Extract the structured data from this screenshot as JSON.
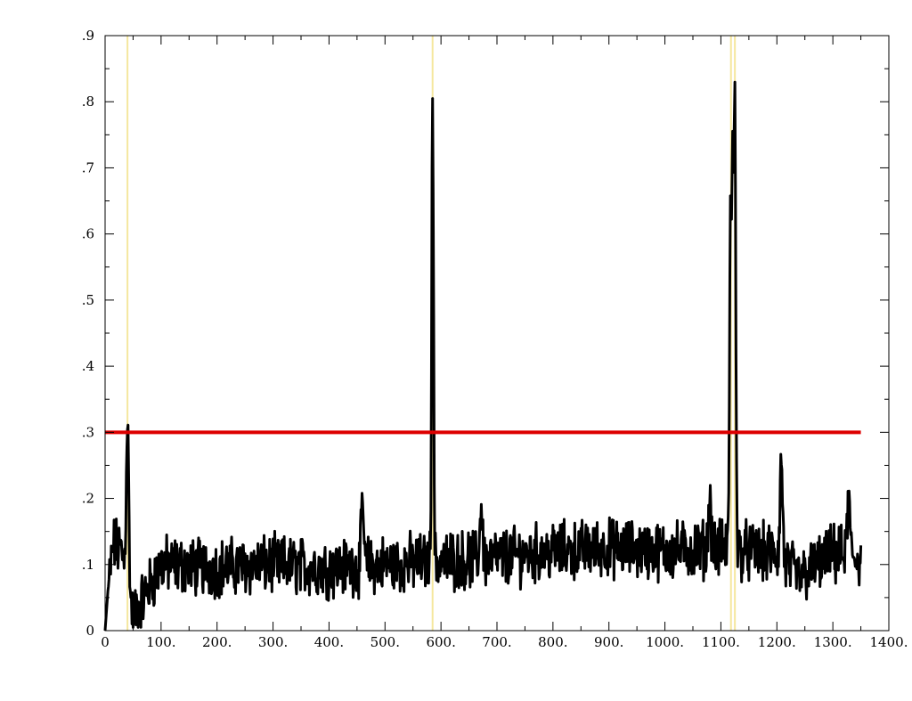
{
  "chart_data": {
    "type": "line",
    "title": "",
    "xlabel": "",
    "ylabel": "",
    "xlim": [
      0,
      1400
    ],
    "ylim": [
      0,
      0.9
    ],
    "x_ticks": [
      0,
      100,
      200,
      300,
      400,
      500,
      600,
      700,
      800,
      900,
      1000,
      1100,
      1200,
      1300,
      1400
    ],
    "x_tick_labels": [
      "0",
      "100.",
      "200.",
      "300.",
      "400.",
      "500.",
      "600.",
      "700.",
      "800.",
      "900.",
      "1000.",
      "1100.",
      "1200.",
      "1300.",
      "1400."
    ],
    "y_ticks": [
      0,
      0.1,
      0.2,
      0.3,
      0.4,
      0.5,
      0.6,
      0.7,
      0.8,
      0.9
    ],
    "y_tick_labels": [
      "0",
      ".1",
      ".2",
      ".3",
      ".4",
      ".5",
      ".6",
      ".7",
      ".8",
      ".9"
    ],
    "grid": false,
    "legend": "none",
    "series_color": "#000000",
    "threshold": {
      "y": 0.3,
      "x_start": 0,
      "x_end": 1350,
      "color": "#dd0000"
    },
    "marker_lines": {
      "x": [
        40,
        585,
        1118,
        1125
      ],
      "color": "#f5e79e"
    },
    "x_range": [
      0,
      1350
    ],
    "peaks": [
      {
        "x": 40,
        "y": 0.32
      },
      {
        "x": 585,
        "y": 0.825
      },
      {
        "x": 1117,
        "y": 0.64
      },
      {
        "x": 1121,
        "y": 0.68
      },
      {
        "x": 1125,
        "y": 0.82
      },
      {
        "x": 1208,
        "y": 0.26
      },
      {
        "x": 460,
        "y": 0.19
      },
      {
        "x": 672,
        "y": 0.195
      },
      {
        "x": 1080,
        "y": 0.205
      },
      {
        "x": 1328,
        "y": 0.205
      }
    ],
    "baseline": [
      {
        "x": 0,
        "y": 0.0
      },
      {
        "x": 5,
        "y": 0.06
      },
      {
        "x": 15,
        "y": 0.13
      },
      {
        "x": 30,
        "y": 0.12
      },
      {
        "x": 50,
        "y": 0.02
      },
      {
        "x": 100,
        "y": 0.1
      },
      {
        "x": 200,
        "y": 0.095
      },
      {
        "x": 300,
        "y": 0.1
      },
      {
        "x": 400,
        "y": 0.095
      },
      {
        "x": 500,
        "y": 0.1
      },
      {
        "x": 600,
        "y": 0.105
      },
      {
        "x": 700,
        "y": 0.11
      },
      {
        "x": 800,
        "y": 0.12
      },
      {
        "x": 900,
        "y": 0.125
      },
      {
        "x": 1000,
        "y": 0.12
      },
      {
        "x": 1100,
        "y": 0.125
      },
      {
        "x": 1200,
        "y": 0.115
      },
      {
        "x": 1240,
        "y": 0.08
      },
      {
        "x": 1300,
        "y": 0.115
      },
      {
        "x": 1350,
        "y": 0.11
      }
    ],
    "noise_amplitude": 0.035
  }
}
